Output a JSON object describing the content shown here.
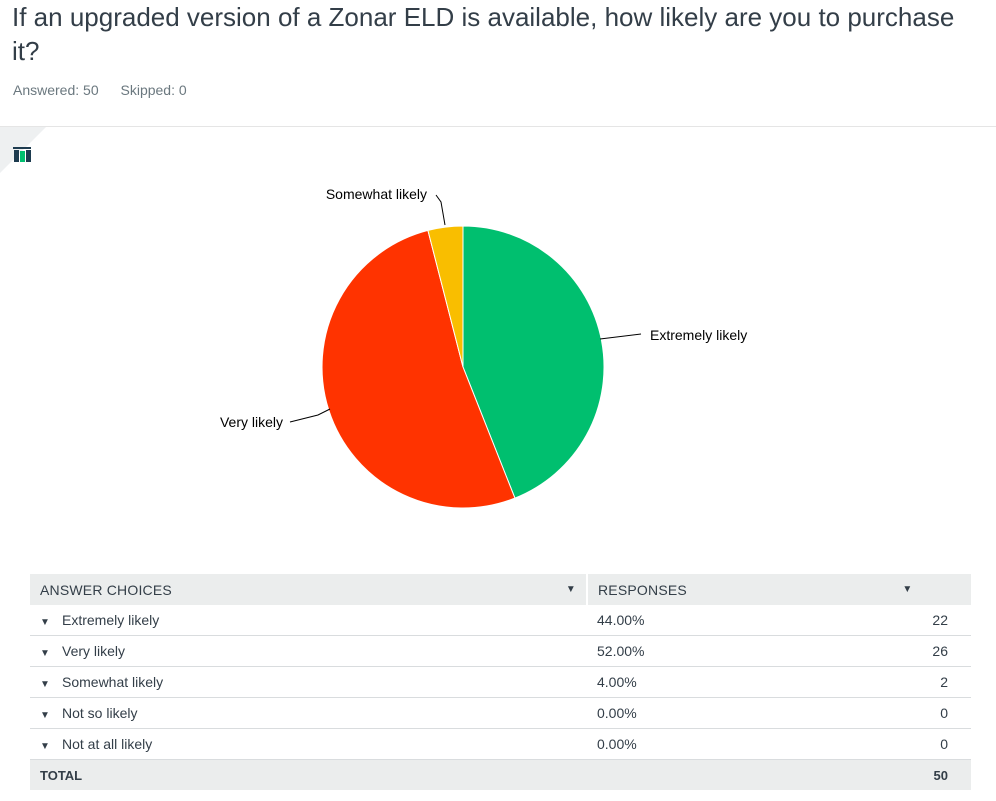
{
  "question": {
    "title": "If an upgraded version of a Zonar ELD is available, how likely are you to purchase it?",
    "answered": "Answered: 50",
    "skipped": "Skipped: 0"
  },
  "icons": {
    "chart_type": "bar-chart-icon"
  },
  "colors": {
    "extremely_likely": "#00BF6F",
    "very_likely": "#FF3300",
    "somewhat_likely": "#F9BE00"
  },
  "chart_data": {
    "type": "pie",
    "slices": [
      {
        "label": "Extremely likely",
        "value": 44.0,
        "color": "#00BF6F"
      },
      {
        "label": "Very likely",
        "value": 52.0,
        "color": "#FF3300"
      },
      {
        "label": "Somewhat likely",
        "value": 4.0,
        "color": "#F9BE00"
      }
    ],
    "start": "12 o'clock, clockwise"
  },
  "table": {
    "header_choices": "ANSWER CHOICES",
    "header_responses": "RESPONSES",
    "rows": [
      {
        "choice": "Extremely likely",
        "percent": "44.00%",
        "count": "22"
      },
      {
        "choice": "Very likely",
        "percent": "52.00%",
        "count": "26"
      },
      {
        "choice": "Somewhat likely",
        "percent": "4.00%",
        "count": "2"
      },
      {
        "choice": "Not so likely",
        "percent": "0.00%",
        "count": "0"
      },
      {
        "choice": "Not at all likely",
        "percent": "0.00%",
        "count": "0"
      }
    ],
    "total_label": "TOTAL",
    "total_count": "50"
  }
}
